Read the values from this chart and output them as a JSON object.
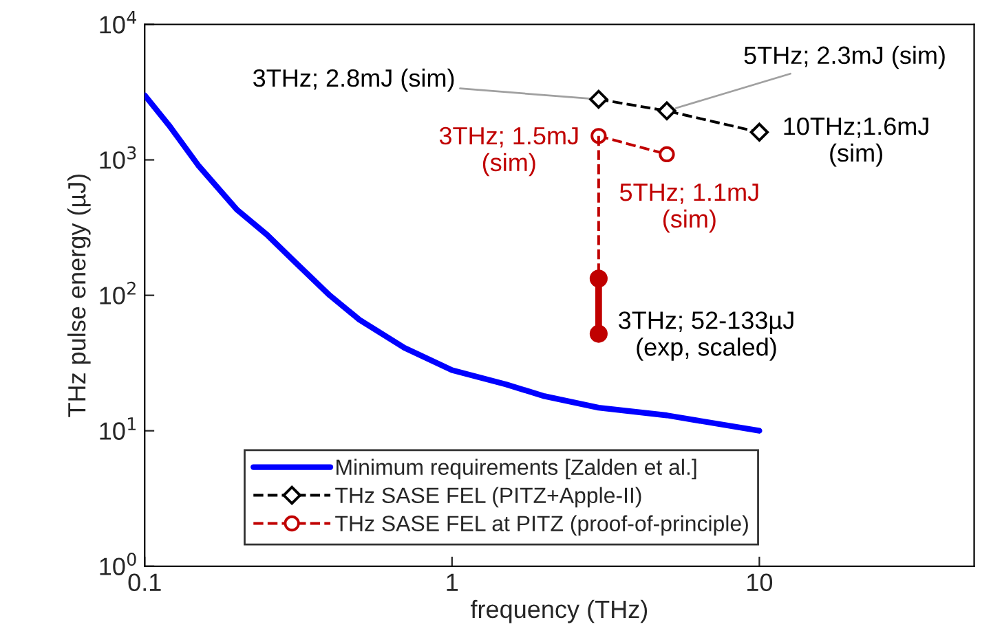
{
  "chart_data": {
    "type": "line",
    "xlabel": "frequency (THz)",
    "ylabel": "THz pulse energy (µJ)",
    "log": "xy",
    "xlim": [
      0.1,
      50
    ],
    "ylim": [
      1,
      10000
    ],
    "xticks": [
      0.1,
      1,
      10
    ],
    "yticks": [
      {
        "value": 1,
        "label": "10$^{0}$"
      },
      {
        "value": 10,
        "label": "10$^{1}$"
      },
      {
        "value": 100,
        "label": "10$^{2}$"
      },
      {
        "value": 1000,
        "label": "10$^{3}$"
      },
      {
        "value": 10000,
        "label": "10$^{4}$"
      }
    ],
    "grid": false,
    "legend": "bottom",
    "series": [
      {
        "name": "Minimum requirements [Zalden et al.]",
        "color": "#0000ff",
        "marker": "none",
        "line_style": "solid",
        "x": [
          0.1,
          0.12,
          0.15,
          0.2,
          0.25,
          0.3,
          0.4,
          0.5,
          0.7,
          1,
          1.5,
          2,
          3,
          5,
          10
        ],
        "values": [
          3000,
          1800,
          900,
          427,
          280,
          187,
          100,
          66,
          41,
          28,
          22,
          18,
          14.8,
          13,
          10
        ]
      },
      {
        "name": "THz SASE FEL (PITZ+Apple-II)",
        "color": "#000000",
        "marker": "diamond",
        "line_style": "dashed",
        "x": [
          3,
          5,
          10
        ],
        "values": [
          2800,
          2300,
          1600
        ]
      },
      {
        "name": "THz SASE FEL at PITZ (proof-of-principle)",
        "color": "#c00000",
        "marker": "circle",
        "line_style": "dashed",
        "x": [
          3,
          5
        ],
        "values": [
          1500,
          1100
        ]
      },
      {
        "color": "#c00000",
        "line_style": "dashed",
        "x": [
          3,
          3
        ],
        "values": [
          1500,
          133
        ]
      },
      {
        "color": "#c00000",
        "marker": "circle",
        "line_style": "solid",
        "x": [
          3,
          3
        ],
        "values": [
          52,
          133
        ]
      }
    ],
    "annotations": [
      {
        "text": "3THz; 2.8mJ (sim)",
        "x": 3,
        "y": 2800
      },
      {
        "text": "5THz; 2.3mJ (sim)",
        "x": 5,
        "y": 2300
      },
      {
        "text": "10THz;1.6mJ\n(sim)",
        "x": 10,
        "y": 1600
      },
      {
        "text": "3THz; 1.5mJ\n(sim)",
        "x": 3,
        "y": 1500
      },
      {
        "text": "5THz; 1.1mJ\n(sim)",
        "x": 5,
        "y": 1100
      },
      {
        "text": "3THz; 52-133µJ\n(exp, scaled)",
        "x": 3,
        "y": 133
      }
    ]
  }
}
